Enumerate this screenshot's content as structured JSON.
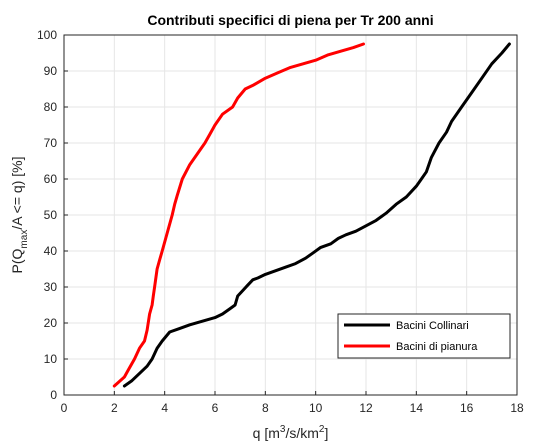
{
  "chart_data": {
    "type": "line",
    "title": "Contributi specifici di piena per Tr 200 anni",
    "xlabel": {
      "base": "q [m",
      "sup1": "3",
      "mid": "/s/km",
      "sup2": "2",
      "end": "]"
    },
    "ylabel": {
      "base": "P(Q",
      "sub": "max",
      "end": "/A <= q) [%]"
    },
    "xlim": [
      0,
      18
    ],
    "ylim": [
      0,
      100
    ],
    "xticks": [
      0,
      2,
      4,
      6,
      8,
      10,
      12,
      14,
      16,
      18
    ],
    "yticks": [
      0,
      10,
      20,
      30,
      40,
      50,
      60,
      70,
      80,
      90,
      100
    ],
    "grid": true,
    "legend_position": "bottom-right",
    "series": [
      {
        "name": "Bacini Collinari",
        "color": "#000000",
        "x": [
          2.4,
          2.7,
          3.0,
          3.3,
          3.5,
          3.7,
          3.9,
          4.2,
          4.6,
          5.0,
          5.5,
          6.0,
          6.3,
          6.6,
          6.8,
          6.9,
          7.1,
          7.3,
          7.5,
          7.7,
          8.0,
          8.4,
          8.8,
          9.2,
          9.6,
          9.9,
          10.2,
          10.6,
          10.9,
          11.2,
          11.6,
          12.0,
          12.4,
          12.8,
          13.2,
          13.6,
          14.0,
          14.2,
          14.4,
          14.6,
          14.9,
          15.2,
          15.4,
          15.8,
          16.2,
          16.6,
          17.0,
          17.4,
          17.7
        ],
        "y": [
          2.5,
          4,
          6,
          8,
          10,
          13,
          15,
          17.5,
          18.5,
          19.5,
          20.5,
          21.5,
          22.5,
          24,
          25,
          27.5,
          29,
          30.5,
          32,
          32.5,
          33.5,
          34.5,
          35.5,
          36.5,
          38,
          39.5,
          41,
          42,
          43.5,
          44.5,
          45.5,
          47,
          48.5,
          50.5,
          53,
          55,
          58,
          60,
          62,
          66,
          70,
          73,
          76,
          80,
          84,
          88,
          92,
          95,
          97.5
        ]
      },
      {
        "name": "Bacini di pianura",
        "color": "#ff0000",
        "x": [
          2.0,
          2.4,
          2.6,
          2.8,
          3.0,
          3.2,
          3.3,
          3.4,
          3.5,
          3.55,
          3.6,
          3.7,
          3.8,
          3.9,
          4.0,
          4.1,
          4.2,
          4.3,
          4.4,
          4.5,
          4.7,
          5.0,
          5.3,
          5.6,
          5.8,
          6.0,
          6.3,
          6.7,
          6.9,
          7.2,
          7.5,
          8.0,
          8.5,
          9.0,
          9.5,
          10.0,
          10.5,
          11.0,
          11.5,
          11.9
        ],
        "y": [
          2.5,
          5,
          7.5,
          10,
          13,
          15,
          18,
          22.5,
          25,
          27.5,
          30,
          35,
          37.5,
          40,
          42.5,
          45,
          47.5,
          50,
          53,
          55.5,
          60,
          64,
          67,
          70,
          72.5,
          75,
          78,
          80,
          82.5,
          85,
          86,
          88,
          89.5,
          91,
          92,
          93,
          94.5,
          95.5,
          96.5,
          97.5
        ]
      }
    ]
  }
}
